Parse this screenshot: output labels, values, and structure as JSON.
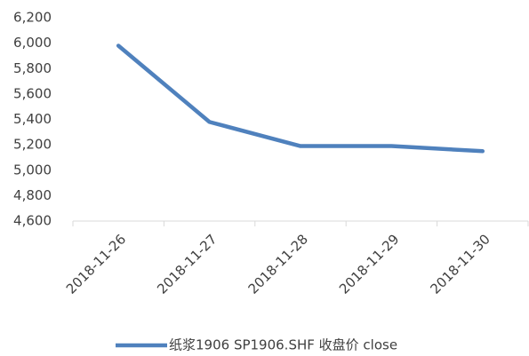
{
  "chart_data": {
    "type": "line",
    "categories": [
      "2018-11-26",
      "2018-11-27",
      "2018-11-28",
      "2018-11-29",
      "2018-11-30"
    ],
    "series": [
      {
        "name": "纸浆1906 SP1906.SHF 收盘价 close",
        "color": "#4f81bd",
        "values": [
          5980,
          5380,
          5190,
          5190,
          5150
        ]
      }
    ],
    "ylim": [
      4600,
      6200
    ],
    "yticks": [
      {
        "value": 4600,
        "label": "4,600"
      },
      {
        "value": 4800,
        "label": "4,800"
      },
      {
        "value": 5000,
        "label": "5,000"
      },
      {
        "value": 5200,
        "label": "5,200"
      },
      {
        "value": 5400,
        "label": "5,400"
      },
      {
        "value": 5600,
        "label": "5,600"
      },
      {
        "value": 5800,
        "label": "5,800"
      },
      {
        "value": 6000,
        "label": "6,000"
      },
      {
        "value": 6200,
        "label": "6,200"
      }
    ],
    "grid": false,
    "legend": "bottom"
  }
}
